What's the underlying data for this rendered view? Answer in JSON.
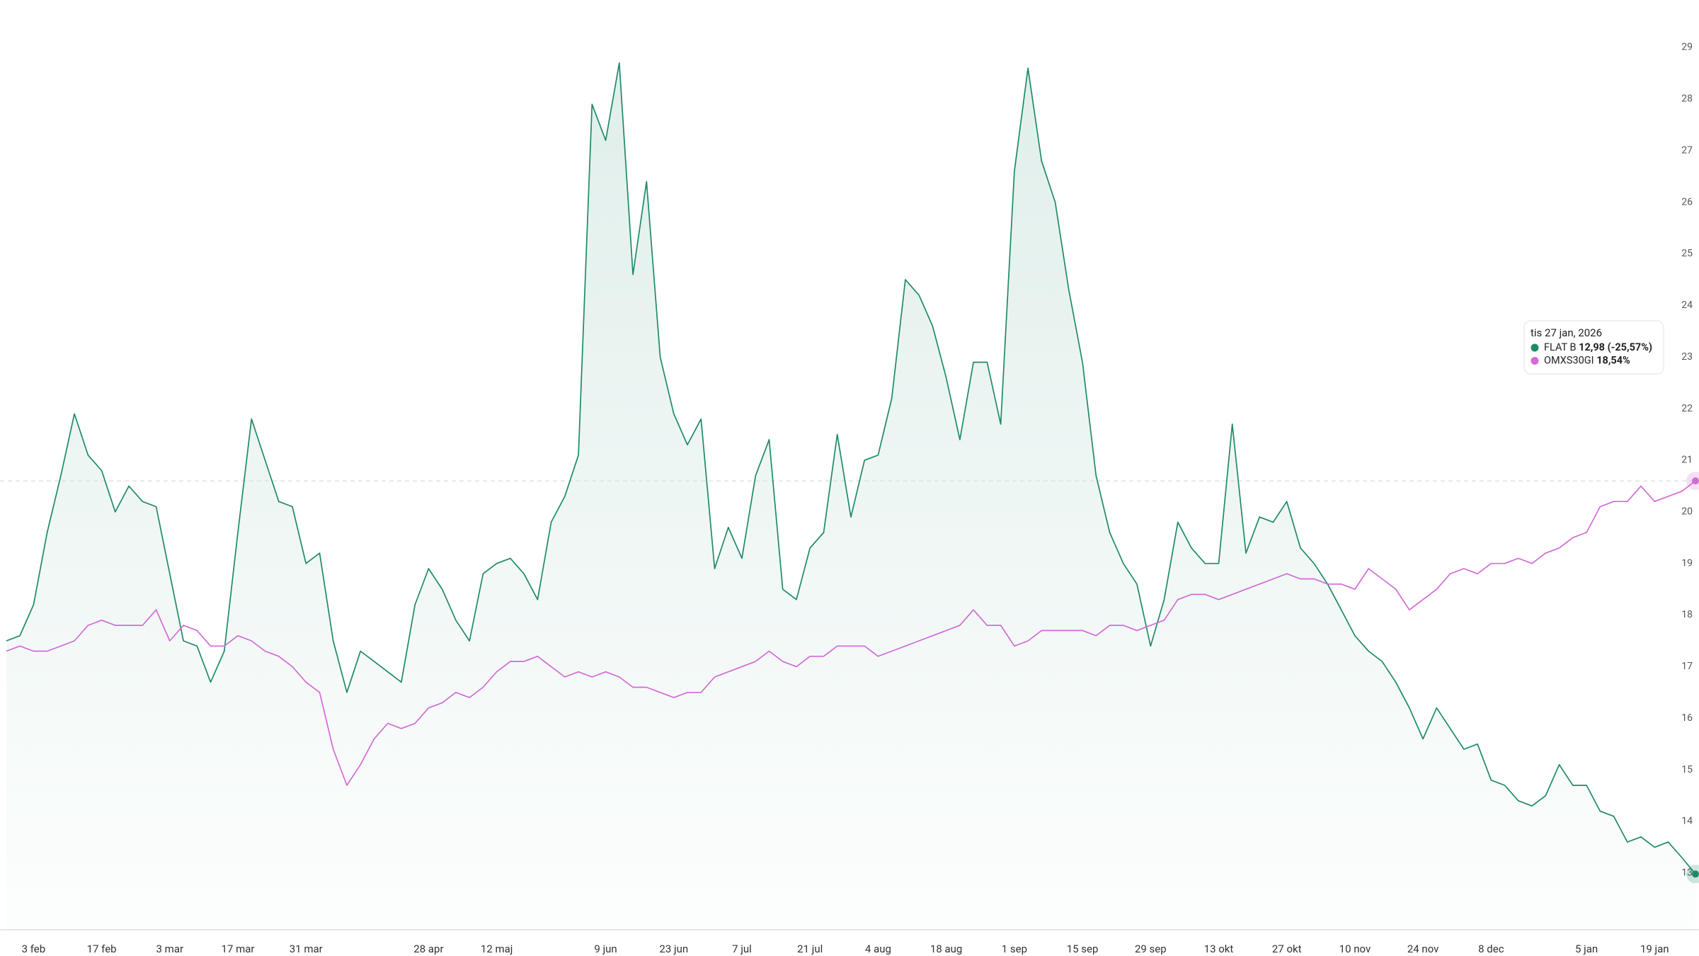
{
  "chart_data": {
    "type": "line",
    "categories": [
      null,
      null,
      "3 feb",
      null,
      null,
      null,
      null,
      "17 feb",
      null,
      null,
      null,
      null,
      "3 mar",
      null,
      null,
      null,
      null,
      "17 mar",
      null,
      null,
      null,
      null,
      "31 mar",
      null,
      null,
      null,
      null,
      null,
      null,
      null,
      null,
      "28 apr",
      null,
      null,
      null,
      null,
      "12 maj",
      null,
      null,
      null,
      null,
      null,
      null,
      null,
      "9 jun",
      null,
      null,
      null,
      null,
      "23 jun",
      null,
      null,
      null,
      null,
      "7 jul",
      null,
      null,
      null,
      null,
      "21 jul",
      null,
      null,
      null,
      null,
      "4 aug",
      null,
      null,
      null,
      null,
      "18 aug",
      null,
      null,
      null,
      null,
      "1 sep",
      null,
      null,
      null,
      null,
      "15 sep",
      null,
      null,
      null,
      null,
      "29 sep",
      null,
      null,
      null,
      null,
      "13 okt",
      null,
      null,
      null,
      null,
      "27 okt",
      null,
      null,
      null,
      null,
      "10 nov",
      null,
      null,
      null,
      null,
      "24 nov",
      null,
      null,
      null,
      null,
      "8 dec",
      null,
      null,
      null,
      null,
      null,
      null,
      "5 jan",
      null,
      null,
      null,
      null,
      "19 jan",
      null,
      null,
      null
    ],
    "series": [
      {
        "name": "FLAT B",
        "color": "#1f8a6b",
        "area": true,
        "values": [
          17.5,
          17.6,
          18.2,
          19.6,
          20.7,
          21.9,
          21.1,
          20.8,
          20.0,
          20.5,
          20.2,
          20.1,
          18.8,
          17.5,
          17.4,
          16.7,
          17.3,
          19.6,
          21.8,
          21.0,
          20.2,
          20.1,
          19.0,
          19.2,
          17.5,
          16.5,
          17.3,
          17.1,
          16.9,
          16.7,
          18.2,
          18.9,
          18.5,
          17.9,
          17.5,
          18.8,
          19.0,
          19.1,
          18.8,
          18.3,
          19.8,
          20.3,
          21.1,
          27.9,
          27.2,
          28.7,
          24.6,
          26.4,
          23.0,
          21.9,
          21.3,
          21.8,
          18.9,
          19.7,
          19.1,
          20.7,
          21.4,
          18.5,
          18.3,
          19.3,
          19.6,
          21.5,
          19.9,
          21.0,
          21.1,
          22.2,
          24.5,
          24.2,
          23.6,
          22.6,
          21.4,
          22.9,
          22.9,
          21.7,
          26.6,
          28.6,
          26.8,
          26.0,
          24.3,
          22.9,
          20.7,
          19.6,
          19.0,
          18.6,
          17.4,
          18.3,
          19.8,
          19.3,
          19.0,
          19.0,
          21.7,
          19.2,
          19.9,
          19.8,
          20.2,
          19.3,
          19.0,
          18.6,
          18.1,
          17.6,
          17.3,
          17.1,
          16.7,
          16.2,
          15.6,
          16.2,
          15.8,
          15.4,
          15.5,
          14.8,
          14.7,
          14.4,
          14.3,
          14.5,
          15.1,
          14.7,
          14.7,
          14.2,
          14.1,
          13.6,
          13.7,
          13.5,
          13.6,
          13.3,
          12.98
        ]
      },
      {
        "name": "OMXS30GI",
        "color": "#d36bd6",
        "values": [
          17.3,
          17.4,
          17.3,
          17.3,
          17.4,
          17.5,
          17.8,
          17.9,
          17.8,
          17.8,
          17.8,
          18.1,
          17.5,
          17.8,
          17.7,
          17.4,
          17.4,
          17.6,
          17.5,
          17.3,
          17.2,
          17.0,
          16.7,
          16.5,
          15.4,
          14.7,
          15.1,
          15.6,
          15.9,
          15.8,
          15.9,
          16.2,
          16.3,
          16.5,
          16.4,
          16.6,
          16.9,
          17.1,
          17.1,
          17.2,
          17.0,
          16.8,
          16.9,
          16.8,
          16.9,
          16.8,
          16.6,
          16.6,
          16.5,
          16.4,
          16.5,
          16.5,
          16.8,
          16.9,
          17.0,
          17.1,
          17.3,
          17.1,
          17.0,
          17.2,
          17.2,
          17.4,
          17.4,
          17.4,
          17.2,
          17.3,
          17.4,
          17.5,
          17.6,
          17.7,
          17.8,
          18.1,
          17.8,
          17.8,
          17.4,
          17.5,
          17.7,
          17.7,
          17.7,
          17.7,
          17.6,
          17.8,
          17.8,
          17.7,
          17.8,
          17.9,
          18.3,
          18.4,
          18.4,
          18.3,
          18.4,
          18.5,
          18.6,
          18.7,
          18.8,
          18.7,
          18.7,
          18.6,
          18.6,
          18.5,
          18.9,
          18.7,
          18.5,
          18.1,
          18.3,
          18.5,
          18.8,
          18.9,
          18.8,
          19.0,
          19.0,
          19.1,
          19.0,
          19.2,
          19.3,
          19.5,
          19.6,
          20.1,
          20.2,
          20.2,
          20.5,
          20.2,
          20.3,
          20.4,
          20.6
        ]
      }
    ],
    "ylim": [
      11.9,
      29.92
    ],
    "yticks": [
      13,
      14,
      15,
      16,
      17,
      18,
      19,
      20,
      21,
      22,
      23,
      24,
      25,
      26,
      27,
      28,
      29
    ],
    "grid": false,
    "tooltip": {
      "title": "tis 27 jan, 2026",
      "labels": [
        "12,98 (-25,57%)",
        "18,54%"
      ]
    }
  }
}
